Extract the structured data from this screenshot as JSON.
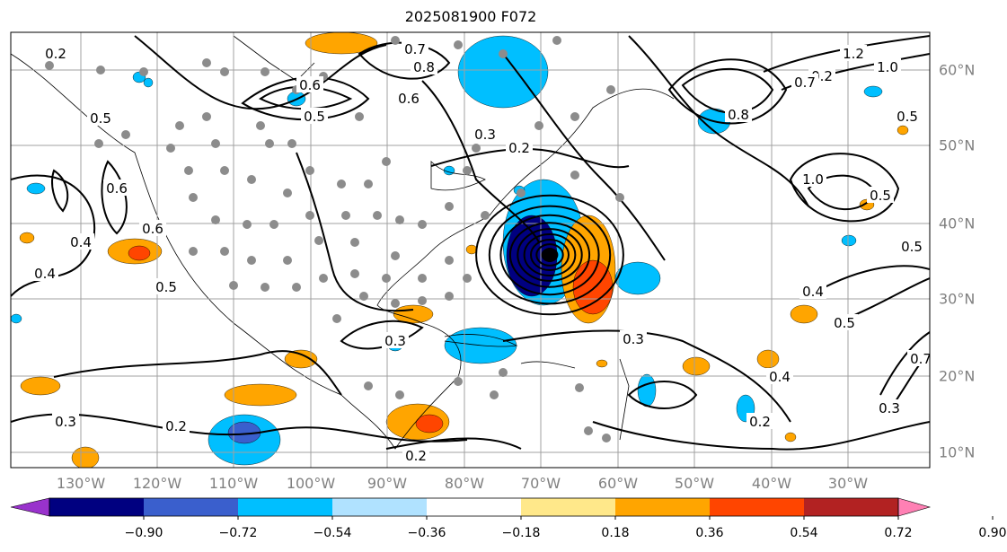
{
  "title": "2025081900 F072",
  "map": {
    "lon_labels": [
      "130°W",
      "120°W",
      "110°W",
      "100°W",
      "90°W",
      "80°W",
      "70°W",
      "60°W",
      "50°W",
      "40°W",
      "30°W"
    ],
    "lat_labels": [
      "60°N",
      "50°N",
      "40°N",
      "30°N",
      "20°N",
      "10°N"
    ],
    "contour_labels": [
      "0.2",
      "0.7",
      "0.8",
      "0.6",
      "0.6",
      "0.5",
      "0.5",
      "0.6",
      "0.2",
      "0.3",
      "0.2",
      "1.2",
      "1.0",
      "0.7",
      "0.8",
      "1.0",
      "0.5",
      "0.5",
      "0.5",
      "0.4",
      "0.6",
      "0.4",
      "0.5",
      "0.4",
      "0.3",
      "0.3",
      "0.4",
      "0.5",
      "0.3",
      "0.2",
      "0.2",
      "0.2",
      "0.3",
      "0.7",
      "0.8"
    ],
    "marker_color": "#8c8c8c"
  },
  "colorbar": {
    "ticks": [
      "−0.90",
      "−0.72",
      "−0.54",
      "−0.36",
      "−0.18",
      "0.18",
      "0.36",
      "0.54",
      "0.72",
      "0.90"
    ],
    "colors": [
      "#9932cc",
      "#000080",
      "#3a5fcd",
      "#00bfff",
      "#b0e2ff",
      "#ffffff",
      "#ffe88a",
      "#ffa500",
      "#ff4500",
      "#b22222",
      "#ff80b4"
    ]
  }
}
